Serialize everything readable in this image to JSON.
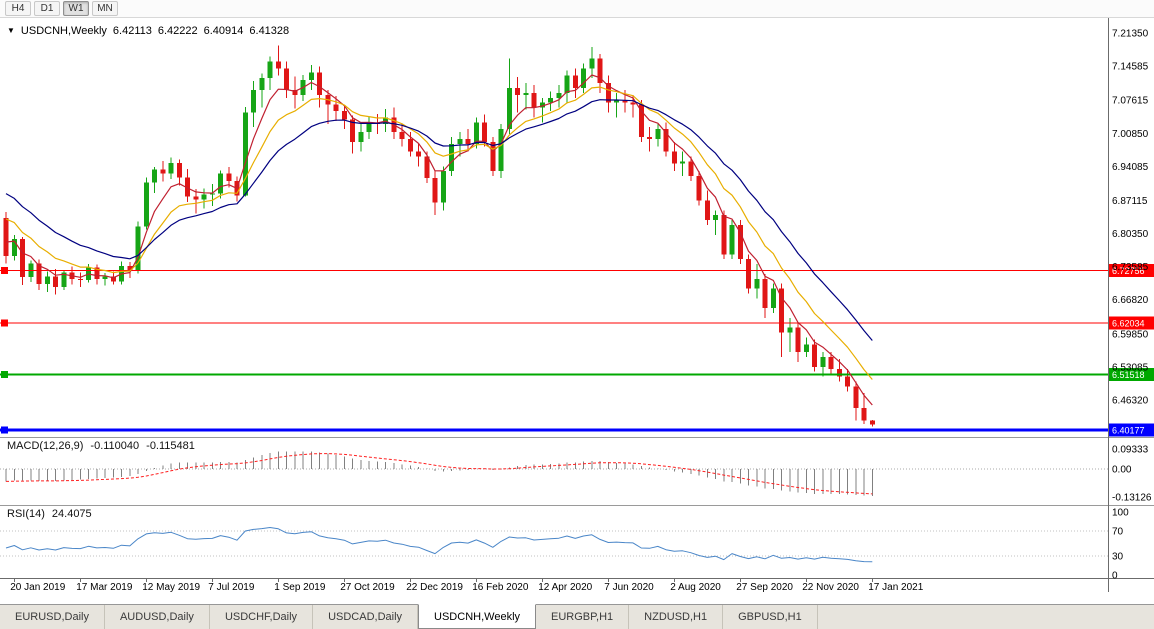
{
  "toolbar": {
    "timeframes": [
      "H4",
      "D1",
      "W1",
      "MN"
    ],
    "active": "W1"
  },
  "chart": {
    "marker": "▼",
    "symbol_period": "USDCNH,Weekly"
  },
  "chart_data": {
    "type": "candlestick",
    "symbol": "USDCNH",
    "timeframe": "Weekly",
    "title": "USDCNH,Weekly 6.42113 6.42222 6.40914 6.41328",
    "current_bar": {
      "open": "6.42113",
      "high": "6.42222",
      "low": "6.40914",
      "close": "6.41328"
    },
    "y_axis_labels": [
      "7.21350",
      "7.14585",
      "7.07615",
      "7.00850",
      "6.94085",
      "6.87115",
      "6.80350",
      "6.73585",
      "6.66820",
      "6.59850",
      "6.53085",
      "6.46320"
    ],
    "x_axis_labels": [
      {
        "label": "20 Jan 2019",
        "i": 1
      },
      {
        "label": "17 Mar 2019",
        "i": 9
      },
      {
        "label": "12 May 2019",
        "i": 17
      },
      {
        "label": "7 Jul 2019",
        "i": 25
      },
      {
        "label": "1 Sep 2019",
        "i": 33
      },
      {
        "label": "27 Oct 2019",
        "i": 41
      },
      {
        "label": "22 Dec 2019",
        "i": 49
      },
      {
        "label": "16 Feb 2020",
        "i": 57
      },
      {
        "label": "12 Apr 2020",
        "i": 65
      },
      {
        "label": "7 Jun 2020",
        "i": 73
      },
      {
        "label": "2 Aug 2020",
        "i": 81
      },
      {
        "label": "27 Sep 2020",
        "i": 89
      },
      {
        "label": "22 Nov 2020",
        "i": 97
      },
      {
        "label": "17 Jan 2021",
        "i": 105
      }
    ],
    "horizontal_lines": [
      {
        "price": "6.72756",
        "color": "#FF0000",
        "width": 1
      },
      {
        "price": "6.62034",
        "color": "#FF0000",
        "width": 1
      },
      {
        "price": "6.51518",
        "color": "#00A800",
        "width": 2
      },
      {
        "price": "6.40177",
        "color": "#0000FF",
        "width": 3
      }
    ],
    "colors": {
      "up": "#16A516",
      "down": "#E01616"
    },
    "moving_averages": [
      {
        "name": "ma-fast",
        "period": 5,
        "seed": 6.8,
        "color": "#C02030"
      },
      {
        "name": "ma-medium",
        "period": 10,
        "seed": 6.85,
        "color": "#E8AE00"
      },
      {
        "name": "ma-slow",
        "period": 18,
        "seed": 6.9,
        "color": "#000080"
      }
    ],
    "candles": [
      [
        6.835,
        6.848,
        6.742,
        6.758
      ],
      [
        6.758,
        6.8,
        6.748,
        6.792
      ],
      [
        6.792,
        6.796,
        6.698,
        6.715
      ],
      [
        6.715,
        6.748,
        6.704,
        6.742
      ],
      [
        6.742,
        6.75,
        6.688,
        6.7
      ],
      [
        6.7,
        6.726,
        6.684,
        6.716
      ],
      [
        6.716,
        6.731,
        6.679,
        6.694
      ],
      [
        6.694,
        6.729,
        6.688,
        6.724
      ],
      [
        6.724,
        6.736,
        6.699,
        6.711
      ],
      [
        6.711,
        6.724,
        6.694,
        6.708
      ],
      [
        6.708,
        6.741,
        6.703,
        6.734
      ],
      [
        6.734,
        6.74,
        6.699,
        6.711
      ],
      [
        6.711,
        6.723,
        6.697,
        6.716
      ],
      [
        6.716,
        6.726,
        6.699,
        6.705
      ],
      [
        6.705,
        6.746,
        6.699,
        6.737
      ],
      [
        6.737,
        6.745,
        6.713,
        6.729
      ],
      [
        6.729,
        6.828,
        6.722,
        6.818
      ],
      [
        6.818,
        6.918,
        6.812,
        6.908
      ],
      [
        6.908,
        6.94,
        6.886,
        6.934
      ],
      [
        6.934,
        6.952,
        6.91,
        6.926
      ],
      [
        6.926,
        6.959,
        6.915,
        6.948
      ],
      [
        6.948,
        6.955,
        6.902,
        6.918
      ],
      [
        6.918,
        6.935,
        6.868,
        6.879
      ],
      [
        6.879,
        6.895,
        6.844,
        6.873
      ],
      [
        6.873,
        6.896,
        6.855,
        6.883
      ],
      [
        6.883,
        6.905,
        6.86,
        6.885
      ],
      [
        6.885,
        6.932,
        6.875,
        6.926
      ],
      [
        6.926,
        6.94,
        6.898,
        6.911
      ],
      [
        6.911,
        6.92,
        6.869,
        6.881
      ],
      [
        6.881,
        7.062,
        6.879,
        7.051
      ],
      [
        7.051,
        7.115,
        7.021,
        7.097
      ],
      [
        7.097,
        7.131,
        7.061,
        7.121
      ],
      [
        7.121,
        7.165,
        7.097,
        7.155
      ],
      [
        7.155,
        7.188,
        7.127,
        7.141
      ],
      [
        7.141,
        7.155,
        7.081,
        7.097
      ],
      [
        7.097,
        7.125,
        7.059,
        7.087
      ],
      [
        7.087,
        7.128,
        7.074,
        7.117
      ],
      [
        7.117,
        7.148,
        7.097,
        7.133
      ],
      [
        7.133,
        7.145,
        7.061,
        7.087
      ],
      [
        7.087,
        7.097,
        7.027,
        7.067
      ],
      [
        7.067,
        7.085,
        7.034,
        7.054
      ],
      [
        7.054,
        7.065,
        7.017,
        7.037
      ],
      [
        7.037,
        7.045,
        6.967,
        6.991
      ],
      [
        6.991,
        7.028,
        6.971,
        7.011
      ],
      [
        7.011,
        7.042,
        6.997,
        7.031
      ],
      [
        7.031,
        7.048,
        7.007,
        7.027
      ],
      [
        7.027,
        7.058,
        7.011,
        7.041
      ],
      [
        7.041,
        7.061,
        6.997,
        7.011
      ],
      [
        7.011,
        7.027,
        6.981,
        6.997
      ],
      [
        6.997,
        7.011,
        6.961,
        6.971
      ],
      [
        6.971,
        6.987,
        6.941,
        6.961
      ],
      [
        6.961,
        6.971,
        6.907,
        6.917
      ],
      [
        6.917,
        6.931,
        6.841,
        6.867
      ],
      [
        6.867,
        6.941,
        6.851,
        6.931
      ],
      [
        6.931,
        7.001,
        6.921,
        6.987
      ],
      [
        6.987,
        7.011,
        6.961,
        6.997
      ],
      [
        6.997,
        7.017,
        6.971,
        6.987
      ],
      [
        6.987,
        7.041,
        6.977,
        7.031
      ],
      [
        7.031,
        7.047,
        6.981,
        6.991
      ],
      [
        6.991,
        7.001,
        6.921,
        6.931
      ],
      [
        6.931,
        7.027,
        6.917,
        7.017
      ],
      [
        7.017,
        7.161,
        7.007,
        7.101
      ],
      [
        7.101,
        7.124,
        7.051,
        7.087
      ],
      [
        7.087,
        7.111,
        7.057,
        7.091
      ],
      [
        7.091,
        7.107,
        7.041,
        7.061
      ],
      [
        7.061,
        7.081,
        7.031,
        7.071
      ],
      [
        7.071,
        7.094,
        7.054,
        7.081
      ],
      [
        7.081,
        7.107,
        7.061,
        7.091
      ],
      [
        7.091,
        7.137,
        7.071,
        7.127
      ],
      [
        7.127,
        7.141,
        7.081,
        7.101
      ],
      [
        7.101,
        7.151,
        7.091,
        7.141
      ],
      [
        7.141,
        7.185,
        7.121,
        7.161
      ],
      [
        7.161,
        7.171,
        7.091,
        7.111
      ],
      [
        7.111,
        7.127,
        7.051,
        7.071
      ],
      [
        7.071,
        7.091,
        7.041,
        7.077
      ],
      [
        7.077,
        7.097,
        7.051,
        7.071
      ],
      [
        7.071,
        7.087,
        7.041,
        7.067
      ],
      [
        7.067,
        7.077,
        6.991,
        7.001
      ],
      [
        7.001,
        7.021,
        6.971,
        6.997
      ],
      [
        6.997,
        7.027,
        6.981,
        7.017
      ],
      [
        7.017,
        7.031,
        6.961,
        6.971
      ],
      [
        6.971,
        6.991,
        6.931,
        6.947
      ],
      [
        6.947,
        6.971,
        6.921,
        6.951
      ],
      [
        6.951,
        6.961,
        6.911,
        6.921
      ],
      [
        6.921,
        6.931,
        6.861,
        6.871
      ],
      [
        6.871,
        6.891,
        6.821,
        6.831
      ],
      [
        6.831,
        6.851,
        6.801,
        6.841
      ],
      [
        6.841,
        6.851,
        6.751,
        6.761
      ],
      [
        6.761,
        6.831,
        6.751,
        6.821
      ],
      [
        6.821,
        6.831,
        6.741,
        6.751
      ],
      [
        6.751,
        6.761,
        6.681,
        6.691
      ],
      [
        6.691,
        6.741,
        6.671,
        6.711
      ],
      [
        6.711,
        6.721,
        6.631,
        6.651
      ],
      [
        6.651,
        6.701,
        6.641,
        6.691
      ],
      [
        6.691,
        6.701,
        6.551,
        6.601
      ],
      [
        6.601,
        6.631,
        6.561,
        6.611
      ],
      [
        6.611,
        6.621,
        6.541,
        6.561
      ],
      [
        6.561,
        6.591,
        6.551,
        6.577
      ],
      [
        6.577,
        6.587,
        6.521,
        6.531
      ],
      [
        6.531,
        6.561,
        6.511,
        6.551
      ],
      [
        6.551,
        6.561,
        6.517,
        6.527
      ],
      [
        6.527,
        6.547,
        6.501,
        6.511
      ],
      [
        6.511,
        6.527,
        6.481,
        6.491
      ],
      [
        6.491,
        6.501,
        6.421,
        6.447
      ],
      [
        6.447,
        6.477,
        6.414,
        6.421
      ],
      [
        6.42113,
        6.42222,
        6.40914,
        6.41328
      ]
    ]
  },
  "macd": {
    "label": "MACD(12,26,9)",
    "value_main": "-0.110040",
    "value_signal": "-0.115481",
    "fast": 12,
    "slow": 26,
    "signal": 9,
    "seed_fast": 6.79,
    "seed_slow": 6.85,
    "axis_labels": [
      "0.09333",
      "0.00",
      "-0.13126"
    ],
    "histogram_color": "#808080",
    "signal_color": "#FF2020"
  },
  "rsi": {
    "label": "RSI(14)",
    "value": "24.4075",
    "period": 14,
    "axis_labels": [
      "100",
      "70",
      "30",
      "0"
    ],
    "levels": [
      70,
      30
    ],
    "line_color": "#4A86C8"
  },
  "tabs": [
    "EURUSD,Daily",
    "AUDUSD,Daily",
    "USDCHF,Daily",
    "USDCAD,Daily",
    "USDCNH,Weekly",
    "EURGBP,H1",
    "NZDUSD,H1",
    "GBPUSD,H1"
  ],
  "active_tab": "USDCNH,Weekly"
}
